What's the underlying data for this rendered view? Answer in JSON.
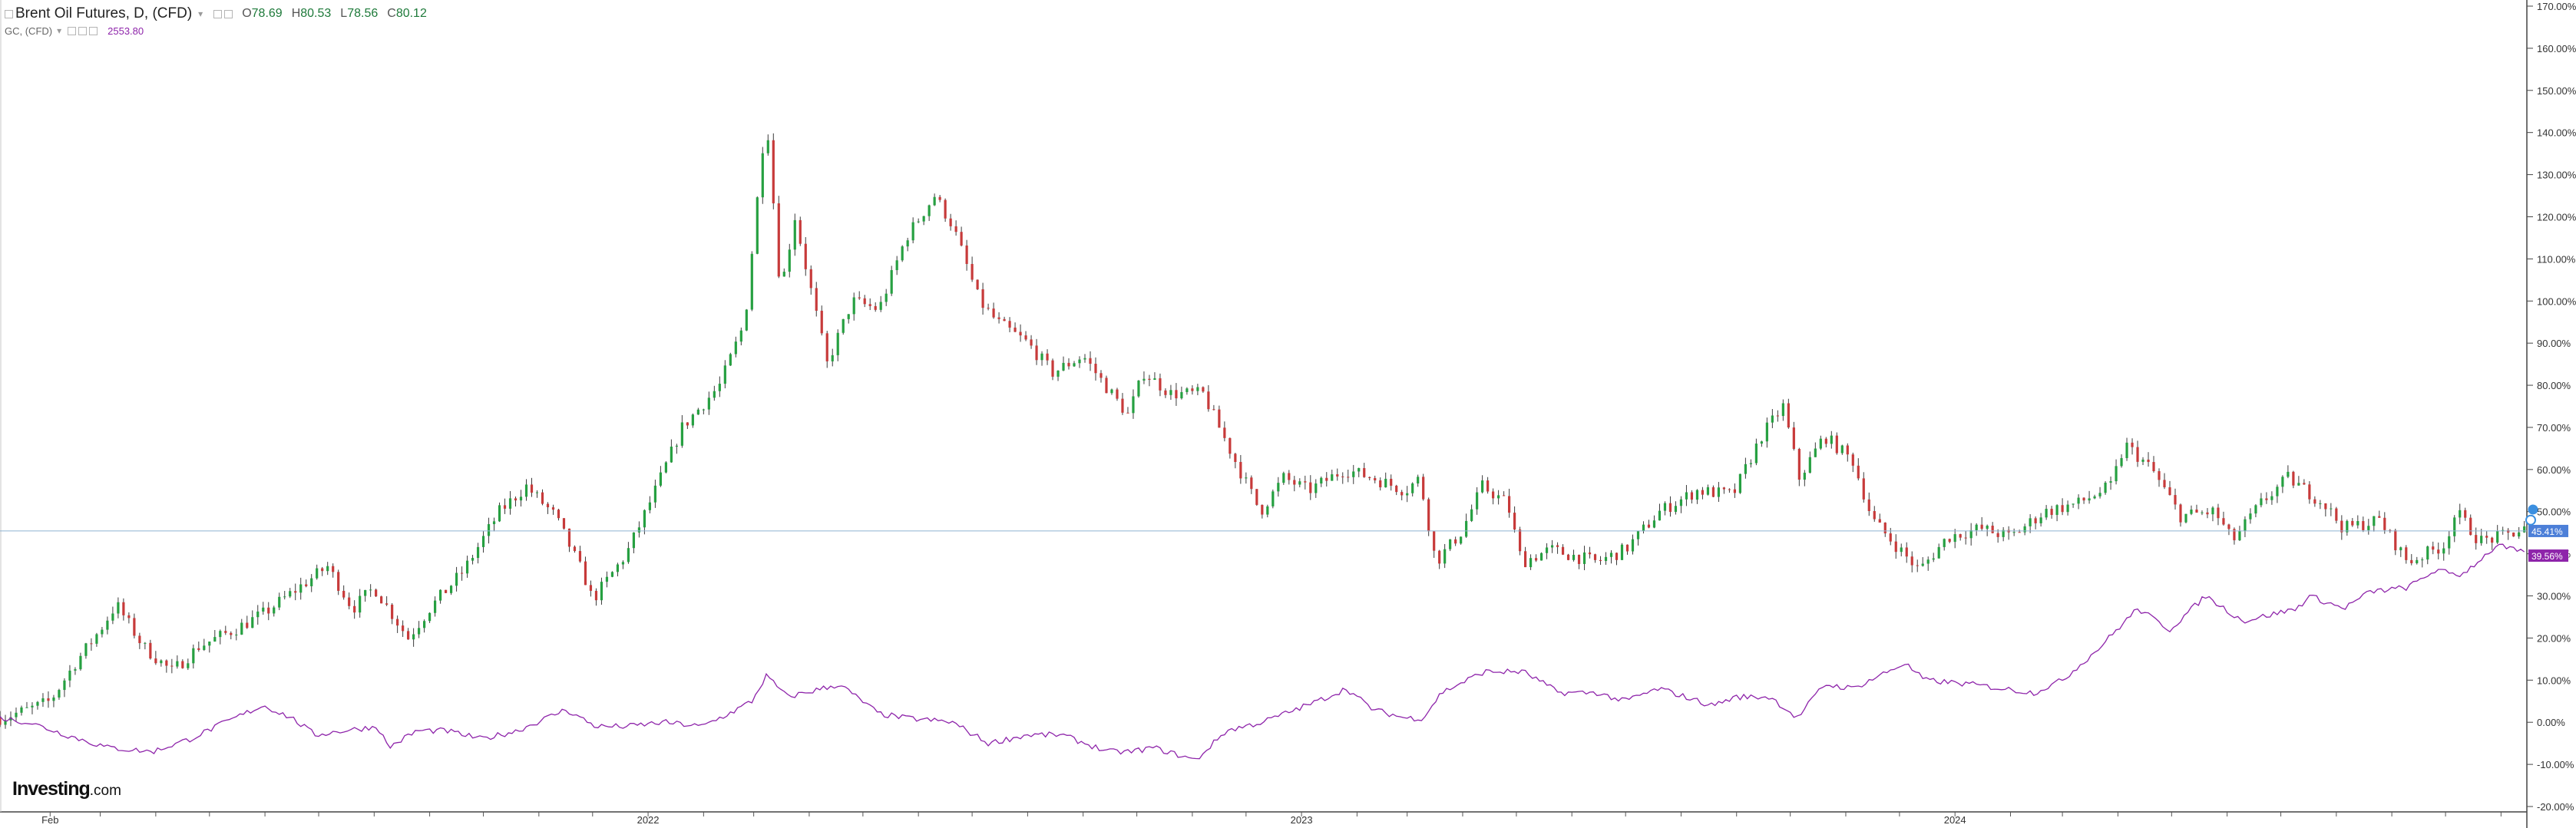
{
  "header": {
    "main_title": "Brent Oil Futures, D, (CFD)",
    "ohlc": [
      {
        "key": "O",
        "value": "78.69"
      },
      {
        "key": "H",
        "value": "80.53"
      },
      {
        "key": "L",
        "value": "78.56"
      },
      {
        "key": "C",
        "value": "80.12"
      }
    ],
    "compare_name": "GC, (CFD)",
    "compare_value": "2553.80"
  },
  "logo": {
    "text": "Investing",
    "suffix": ".com"
  },
  "colors": {
    "up": "#26a041",
    "down": "#c73a3a",
    "compare": "#8e24aa",
    "price_line": "#8fb3d1",
    "last_label": "#4c7fd8",
    "axis": "#444444"
  },
  "chart_data": {
    "type": "line",
    "scale": "percent-change",
    "x_range": [
      "2021-01-04",
      "2024-11-15"
    ],
    "y_range": [
      -20,
      170
    ],
    "y_ticks": [
      "170.00%",
      "160.00%",
      "150.00%",
      "140.00%",
      "130.00%",
      "120.00%",
      "110.00%",
      "100.00%",
      "90.00%",
      "80.00%",
      "70.00%",
      "60.00%",
      "50.00%",
      "40.00%",
      "30.00%",
      "20.00%",
      "10.00%",
      "0.00%",
      "-10.00%",
      "-20.00%"
    ],
    "x_ticks": [
      {
        "date": "2021-02-01",
        "label": "Feb"
      },
      {
        "date": "2022-01-01",
        "label": "2022"
      },
      {
        "date": "2023-01-01",
        "label": "2023"
      },
      {
        "date": "2024-01-01",
        "label": "2024"
      }
    ],
    "last_values": [
      {
        "series": "brent",
        "value": 45.41,
        "label": "45.41%"
      },
      {
        "series": "gold",
        "value": 39.56,
        "label": "39.56%"
      }
    ],
    "series": [
      {
        "id": "brent",
        "style": "candles",
        "points": [
          [
            "2021-01-04",
            1
          ],
          [
            "2021-01-20",
            3
          ],
          [
            "2021-02-01",
            5
          ],
          [
            "2021-02-15",
            14
          ],
          [
            "2021-03-01",
            22
          ],
          [
            "2021-03-10",
            28
          ],
          [
            "2021-03-25",
            18
          ],
          [
            "2021-04-10",
            12
          ],
          [
            "2021-04-25",
            18
          ],
          [
            "2021-05-15",
            22
          ],
          [
            "2021-06-01",
            26
          ],
          [
            "2021-06-20",
            32
          ],
          [
            "2021-07-06",
            37
          ],
          [
            "2021-07-20",
            27
          ],
          [
            "2021-08-01",
            32
          ],
          [
            "2021-08-20",
            20
          ],
          [
            "2021-09-01",
            27
          ],
          [
            "2021-09-20",
            36
          ],
          [
            "2021-10-10",
            50
          ],
          [
            "2021-10-25",
            56
          ],
          [
            "2021-11-10",
            49
          ],
          [
            "2021-11-26",
            35
          ],
          [
            "2021-12-01",
            29
          ],
          [
            "2021-12-20",
            40
          ],
          [
            "2022-01-05",
            55
          ],
          [
            "2022-01-20",
            70
          ],
          [
            "2022-02-10",
            80
          ],
          [
            "2022-02-24",
            95
          ],
          [
            "2022-03-08",
            145
          ],
          [
            "2022-03-16",
            102
          ],
          [
            "2022-03-24",
            120
          ],
          [
            "2022-04-11",
            85
          ],
          [
            "2022-04-25",
            100
          ],
          [
            "2022-05-10",
            98
          ],
          [
            "2022-05-25",
            115
          ],
          [
            "2022-06-10",
            125
          ],
          [
            "2022-06-20",
            118
          ],
          [
            "2022-07-05",
            100
          ],
          [
            "2022-07-15",
            95
          ],
          [
            "2022-08-01",
            90
          ],
          [
            "2022-08-15",
            83
          ],
          [
            "2022-09-01",
            87
          ],
          [
            "2022-09-15",
            79
          ],
          [
            "2022-09-26",
            73
          ],
          [
            "2022-10-05",
            83
          ],
          [
            "2022-10-20",
            78
          ],
          [
            "2022-11-07",
            78
          ],
          [
            "2022-11-25",
            62
          ],
          [
            "2022-12-09",
            50
          ],
          [
            "2022-12-22",
            58
          ],
          [
            "2023-01-05",
            55
          ],
          [
            "2023-01-25",
            60
          ],
          [
            "2023-02-10",
            58
          ],
          [
            "2023-02-28",
            55
          ],
          [
            "2023-03-08",
            58
          ],
          [
            "2023-03-17",
            38
          ],
          [
            "2023-03-31",
            45
          ],
          [
            "2023-04-12",
            56
          ],
          [
            "2023-04-26",
            52
          ],
          [
            "2023-05-04",
            38
          ],
          [
            "2023-05-20",
            41
          ],
          [
            "2023-06-15",
            38
          ],
          [
            "2023-07-01",
            41
          ],
          [
            "2023-07-20",
            50
          ],
          [
            "2023-08-10",
            55
          ],
          [
            "2023-08-30",
            54
          ],
          [
            "2023-09-15",
            68
          ],
          [
            "2023-09-27",
            75
          ],
          [
            "2023-10-06",
            58
          ],
          [
            "2023-10-20",
            68
          ],
          [
            "2023-11-05",
            62
          ],
          [
            "2023-11-16",
            48
          ],
          [
            "2023-12-12",
            36
          ],
          [
            "2023-12-28",
            44
          ],
          [
            "2024-01-15",
            46
          ],
          [
            "2024-02-01",
            44
          ],
          [
            "2024-02-20",
            50
          ],
          [
            "2024-03-10",
            52
          ],
          [
            "2024-03-28",
            56
          ],
          [
            "2024-04-05",
            66
          ],
          [
            "2024-04-20",
            60
          ],
          [
            "2024-05-06",
            49
          ],
          [
            "2024-05-25",
            50
          ],
          [
            "2024-06-04",
            43
          ],
          [
            "2024-06-20",
            52
          ],
          [
            "2024-07-05",
            58
          ],
          [
            "2024-07-25",
            52
          ],
          [
            "2024-08-05",
            46
          ],
          [
            "2024-08-25",
            48
          ],
          [
            "2024-09-10",
            38
          ],
          [
            "2024-09-30",
            42
          ],
          [
            "2024-10-07",
            50
          ],
          [
            "2024-10-20",
            43
          ],
          [
            "2024-11-01",
            44
          ],
          [
            "2024-11-15",
            46
          ]
        ]
      },
      {
        "id": "gold",
        "style": "line",
        "points": [
          [
            "2021-01-04",
            1
          ],
          [
            "2021-01-20",
            0
          ],
          [
            "2021-02-10",
            -3
          ],
          [
            "2021-03-05",
            -6
          ],
          [
            "2021-03-30",
            -7
          ],
          [
            "2021-04-20",
            -4
          ],
          [
            "2021-05-10",
            0
          ],
          [
            "2021-05-31",
            4
          ],
          [
            "2021-06-16",
            1
          ],
          [
            "2021-06-29",
            -3
          ],
          [
            "2021-07-15",
            -2
          ],
          [
            "2021-08-03",
            -1
          ],
          [
            "2021-08-09",
            -6
          ],
          [
            "2021-08-25",
            -2
          ],
          [
            "2021-09-10",
            -2
          ],
          [
            "2021-09-30",
            -4
          ],
          [
            "2021-10-20",
            -2
          ],
          [
            "2021-11-16",
            3
          ],
          [
            "2021-12-03",
            -1
          ],
          [
            "2021-12-20",
            -1
          ],
          [
            "2022-01-10",
            0
          ],
          [
            "2022-01-31",
            -1
          ],
          [
            "2022-02-15",
            2
          ],
          [
            "2022-02-28",
            5
          ],
          [
            "2022-03-08",
            11
          ],
          [
            "2022-03-20",
            6
          ],
          [
            "2022-04-18",
            9
          ],
          [
            "2022-05-10",
            2
          ],
          [
            "2022-05-25",
            1
          ],
          [
            "2022-06-20",
            0
          ],
          [
            "2022-07-10",
            -5
          ],
          [
            "2022-08-01",
            -3
          ],
          [
            "2022-08-20",
            -3
          ],
          [
            "2022-09-15",
            -7
          ],
          [
            "2022-09-28",
            -7
          ],
          [
            "2022-10-10",
            -6
          ],
          [
            "2022-11-03",
            -9
          ],
          [
            "2022-11-20",
            -2
          ],
          [
            "2022-12-10",
            0
          ],
          [
            "2023-01-10",
            5
          ],
          [
            "2023-01-26",
            8
          ],
          [
            "2023-02-10",
            3
          ],
          [
            "2023-02-28",
            1
          ],
          [
            "2023-03-10",
            1
          ],
          [
            "2023-03-20",
            7
          ],
          [
            "2023-04-13",
            12
          ],
          [
            "2023-05-05",
            12
          ],
          [
            "2023-05-25",
            7
          ],
          [
            "2023-06-15",
            7
          ],
          [
            "2023-06-30",
            5
          ],
          [
            "2023-07-20",
            8
          ],
          [
            "2023-08-18",
            4
          ],
          [
            "2023-09-01",
            6
          ],
          [
            "2023-09-20",
            6
          ],
          [
            "2023-10-05",
            1
          ],
          [
            "2023-10-20",
            9
          ],
          [
            "2023-11-05",
            8
          ],
          [
            "2023-12-04",
            14
          ],
          [
            "2023-12-15",
            10
          ],
          [
            "2024-01-10",
            9
          ],
          [
            "2024-02-14",
            7
          ],
          [
            "2024-03-01",
            10
          ],
          [
            "2024-03-20",
            17
          ],
          [
            "2024-04-12",
            27
          ],
          [
            "2024-04-30",
            22
          ],
          [
            "2024-05-20",
            30
          ],
          [
            "2024-06-10",
            24
          ],
          [
            "2024-07-10",
            27
          ],
          [
            "2024-07-17",
            30
          ],
          [
            "2024-08-05",
            27
          ],
          [
            "2024-08-20",
            31
          ],
          [
            "2024-09-10",
            32
          ],
          [
            "2024-09-25",
            36
          ],
          [
            "2024-10-10",
            35
          ],
          [
            "2024-10-30",
            42
          ],
          [
            "2024-11-15",
            40
          ]
        ]
      }
    ]
  }
}
